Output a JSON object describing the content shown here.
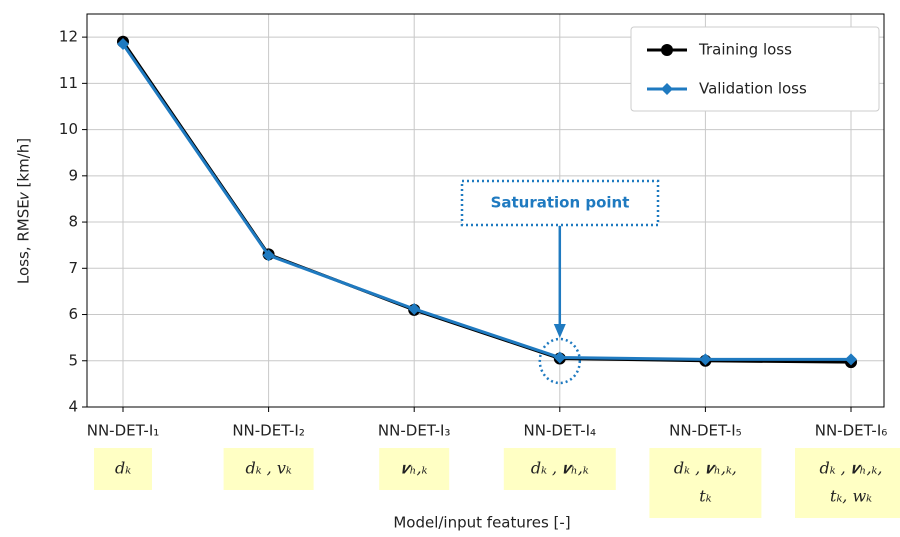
{
  "chart_data": {
    "type": "line",
    "categories": [
      "NN-DET-I₁",
      "NN-DET-I₂",
      "NN-DET-I₃",
      "NN-DET-I₄",
      "NN-DET-I₅",
      "NN-DET-I₆"
    ],
    "feature_labels": [
      [
        "𝑑ₖ"
      ],
      [
        "𝑑ₖ , 𝑣ₖ"
      ],
      [
        "𝒗ₕ,ₖ"
      ],
      [
        "𝑑ₖ , 𝒗ₕ,ₖ"
      ],
      [
        "𝑑ₖ , 𝒗ₕ,ₖ,",
        "𝑡ₖ"
      ],
      [
        "𝑑ₖ , 𝒗ₕ,ₖ,",
        "𝑡ₖ, 𝑤ₖ"
      ]
    ],
    "series": [
      {
        "name": "Training loss",
        "color": "#000000",
        "marker": "circle",
        "values": [
          11.9,
          7.3,
          6.1,
          5.05,
          5.0,
          4.97
        ]
      },
      {
        "name": "Validation loss",
        "color": "#1f7ac0",
        "marker": "diamond",
        "values": [
          11.85,
          7.28,
          6.12,
          5.07,
          5.03,
          5.03
        ]
      }
    ],
    "xlabel": "Model/input features [-]",
    "ylabel": "Loss, RMSE𝑣 [km/h]",
    "ylim": [
      4,
      12.5
    ],
    "yticks": [
      4,
      5,
      6,
      7,
      8,
      9,
      10,
      11,
      12
    ],
    "grid": true,
    "legend": "upper right",
    "annotation": "Saturation point"
  }
}
